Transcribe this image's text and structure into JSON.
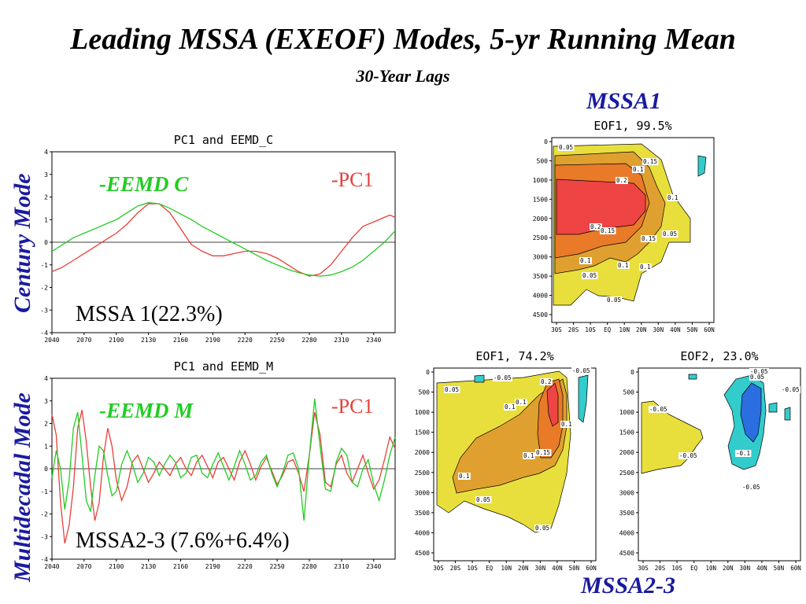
{
  "title": "Leading MSSA (EXEOF) Modes, 5-yr Running Mean",
  "subtitle": "30-Year Lags",
  "labels": {
    "mssa1": "MSSA1",
    "mssa23": "MSSA2-3",
    "century_mode": "Century Mode",
    "multidecadal_mode": "Multidecadal Mode"
  },
  "colors": {
    "pc": "#e8403a",
    "eemd": "#22cc22",
    "label_blue": "#1a1aa0",
    "contour_yellow": "#e8df3c",
    "contour_orange1": "#e0a030",
    "contour_orange2": "#e87a28",
    "contour_red": "#ee4444",
    "contour_cyan": "#33cccc",
    "contour_blue": "#2a6ee0"
  },
  "chart_data": [
    {
      "type": "line",
      "title": "PC1 and EEMD_C",
      "annotation_pc": "-PC1",
      "annotation_eemd": "-EEMD C",
      "variance_label": "MSSA 1(22.3%)",
      "xlim": [
        2040,
        2360
      ],
      "ylim": [
        -4,
        4
      ],
      "x_ticks": [
        "2040",
        "2070",
        "2100",
        "2130",
        "2160",
        "2190",
        "2220",
        "2250",
        "2280",
        "2310",
        "2340"
      ],
      "y_ticks": [
        "4",
        "3",
        "2",
        "1",
        "0",
        "-1",
        "-2",
        "-3",
        "-4"
      ],
      "series": [
        {
          "name": "-PC1",
          "color": "#e8403a",
          "x": [
            2040,
            2050,
            2060,
            2070,
            2080,
            2090,
            2100,
            2110,
            2120,
            2130,
            2140,
            2150,
            2160,
            2170,
            2180,
            2190,
            2200,
            2210,
            2220,
            2230,
            2240,
            2250,
            2260,
            2270,
            2280,
            2290,
            2300,
            2310,
            2320,
            2330,
            2340,
            2350,
            2355,
            2360
          ],
          "y": [
            -1.3,
            -1.1,
            -0.8,
            -0.5,
            -0.2,
            0.1,
            0.4,
            0.8,
            1.3,
            1.7,
            1.7,
            1.3,
            0.6,
            -0.1,
            -0.4,
            -0.6,
            -0.6,
            -0.5,
            -0.4,
            -0.4,
            -0.5,
            -0.7,
            -1.0,
            -1.3,
            -1.5,
            -1.4,
            -1.0,
            -0.4,
            0.2,
            0.7,
            0.9,
            1.1,
            1.2,
            1.1
          ]
        },
        {
          "name": "-EEMD C",
          "color": "#22cc22",
          "x": [
            2040,
            2050,
            2060,
            2070,
            2080,
            2090,
            2100,
            2110,
            2120,
            2130,
            2140,
            2150,
            2160,
            2170,
            2180,
            2190,
            2200,
            2210,
            2220,
            2230,
            2240,
            2250,
            2260,
            2270,
            2280,
            2290,
            2300,
            2310,
            2320,
            2330,
            2340,
            2350,
            2360
          ],
          "y": [
            -0.4,
            -0.1,
            0.2,
            0.4,
            0.6,
            0.8,
            1.0,
            1.3,
            1.6,
            1.75,
            1.7,
            1.5,
            1.25,
            1.0,
            0.7,
            0.45,
            0.2,
            -0.05,
            -0.3,
            -0.55,
            -0.8,
            -1.0,
            -1.2,
            -1.35,
            -1.45,
            -1.5,
            -1.45,
            -1.3,
            -1.1,
            -0.8,
            -0.4,
            0.0,
            0.5
          ]
        }
      ]
    },
    {
      "type": "line",
      "title": "PC1 and EEMD_M",
      "annotation_pc": "-PC1",
      "annotation_eemd": "-EEMD M",
      "variance_label": "MSSA2-3 (7.6%+6.4%)",
      "xlim": [
        2040,
        2360
      ],
      "ylim": [
        -4,
        4
      ],
      "x_ticks": [
        "2040",
        "2070",
        "2100",
        "2130",
        "2160",
        "2190",
        "2220",
        "2250",
        "2280",
        "2310",
        "2340"
      ],
      "y_ticks": [
        "4",
        "3",
        "2",
        "1",
        "0",
        "-1",
        "-2",
        "-3",
        "-4"
      ],
      "series": [
        {
          "name": "-PC1",
          "color": "#e8403a",
          "x": [
            2040,
            2044,
            2048,
            2052,
            2056,
            2060,
            2064,
            2068,
            2072,
            2076,
            2080,
            2084,
            2088,
            2092,
            2096,
            2100,
            2105,
            2110,
            2115,
            2120,
            2125,
            2130,
            2135,
            2140,
            2145,
            2150,
            2155,
            2160,
            2165,
            2170,
            2175,
            2180,
            2185,
            2190,
            2195,
            2200,
            2205,
            2210,
            2215,
            2220,
            2225,
            2230,
            2235,
            2240,
            2245,
            2250,
            2255,
            2260,
            2265,
            2270,
            2275,
            2280,
            2285,
            2290,
            2295,
            2300,
            2305,
            2310,
            2315,
            2320,
            2325,
            2330,
            2335,
            2340,
            2345,
            2350,
            2355,
            2360
          ],
          "y": [
            2.4,
            1.5,
            -1.5,
            -3.3,
            -2.5,
            -0.8,
            1.8,
            2.6,
            1.2,
            -0.8,
            -2.3,
            -1.5,
            0.5,
            1.8,
            1.0,
            -0.5,
            -1.4,
            -0.8,
            0.3,
            0.6,
            0.0,
            -0.6,
            -0.2,
            0.3,
            0.0,
            -0.3,
            0.2,
            0.5,
            0.0,
            -0.3,
            0.3,
            0.6,
            0.1,
            -0.4,
            0.3,
            0.5,
            0.0,
            -0.5,
            0.3,
            0.8,
            0.2,
            -0.5,
            0.1,
            0.5,
            -0.1,
            -0.7,
            -0.3,
            0.3,
            0.4,
            -0.2,
            -1.0,
            0.6,
            2.5,
            1.5,
            -0.6,
            -0.8,
            0.2,
            0.6,
            -0.2,
            -0.6,
            0.0,
            0.6,
            -0.2,
            -0.9,
            -0.5,
            0.4,
            1.4,
            0.9
          ]
        },
        {
          "name": "-EEMD M",
          "color": "#22cc22",
          "x": [
            2040,
            2044,
            2048,
            2052,
            2056,
            2060,
            2064,
            2068,
            2072,
            2076,
            2080,
            2084,
            2088,
            2092,
            2096,
            2100,
            2105,
            2110,
            2115,
            2120,
            2125,
            2130,
            2135,
            2140,
            2145,
            2150,
            2155,
            2160,
            2165,
            2170,
            2175,
            2180,
            2185,
            2190,
            2195,
            2200,
            2205,
            2210,
            2215,
            2220,
            2225,
            2230,
            2235,
            2240,
            2245,
            2250,
            2255,
            2260,
            2265,
            2270,
            2275,
            2280,
            2285,
            2290,
            2295,
            2300,
            2305,
            2310,
            2315,
            2320,
            2325,
            2330,
            2335,
            2340,
            2345,
            2350,
            2355,
            2360
          ],
          "y": [
            -0.4,
            0.8,
            0.0,
            -1.8,
            -0.5,
            1.8,
            2.5,
            0.6,
            -1.4,
            -1.9,
            -0.3,
            1.0,
            0.8,
            -0.3,
            -1.2,
            -1.0,
            0.2,
            0.8,
            0.2,
            -0.6,
            -0.2,
            0.5,
            0.3,
            -0.3,
            0.2,
            0.6,
            0.3,
            -0.4,
            -0.2,
            0.5,
            0.6,
            -0.2,
            -0.4,
            0.2,
            0.7,
            0.1,
            -0.5,
            0.1,
            0.8,
            0.2,
            -0.5,
            -0.3,
            0.3,
            0.6,
            -0.2,
            -0.8,
            -0.2,
            0.6,
            0.7,
            0.0,
            -2.3,
            0.6,
            3.1,
            1.0,
            -0.9,
            -1.0,
            0.3,
            0.9,
            0.6,
            -0.6,
            -0.8,
            0.0,
            0.4,
            -0.7,
            -1.4,
            -0.5,
            0.6,
            1.4
          ]
        }
      ]
    },
    {
      "type": "contour",
      "title": "EOF1, 99.5%",
      "x_ticks": [
        "30S",
        "20S",
        "10S",
        "EQ",
        "10N",
        "20N",
        "30N",
        "40N",
        "50N",
        "60N"
      ],
      "y_ticks": [
        "0",
        "500",
        "1000",
        "1500",
        "2000",
        "2500",
        "3000",
        "3500",
        "4000",
        "4500"
      ],
      "contour_labels": [
        "0.05",
        "0.1",
        "0.15",
        "0.2",
        "0.2",
        "0.15",
        "0.15",
        "0.1",
        "0.1",
        "0.05",
        "0.05",
        "0.05",
        "0.1",
        "0.1",
        "0.05"
      ]
    },
    {
      "type": "contour",
      "title": "EOF1, 74.2%",
      "x_ticks": [
        "30S",
        "20S",
        "10S",
        "EQ",
        "10N",
        "20N",
        "30N",
        "40N",
        "50N",
        "60N"
      ],
      "y_ticks": [
        "0",
        "500",
        "1000",
        "1500",
        "2000",
        "2500",
        "3000",
        "3500",
        "4000",
        "4500"
      ],
      "contour_labels": [
        "-0.05",
        "0.05",
        "0.1",
        "0.1",
        "0.2",
        "0.1",
        "0.15",
        "0.1",
        "0.05",
        "0.05",
        "-0.05",
        "0.1"
      ]
    },
    {
      "type": "contour",
      "title": "EOF2, 23.0%",
      "x_ticks": [
        "30S",
        "20S",
        "10S",
        "EQ",
        "10N",
        "20N",
        "30N",
        "40N",
        "50N",
        "60N"
      ],
      "y_ticks": [
        "0",
        "500",
        "1000",
        "1500",
        "2000",
        "2500",
        "3000",
        "3500",
        "4000",
        "4500"
      ],
      "contour_labels": [
        "-0.05",
        "-0.05",
        "-0.05",
        "0.05",
        "-0.1",
        "-0.05",
        "-0.05"
      ]
    }
  ]
}
